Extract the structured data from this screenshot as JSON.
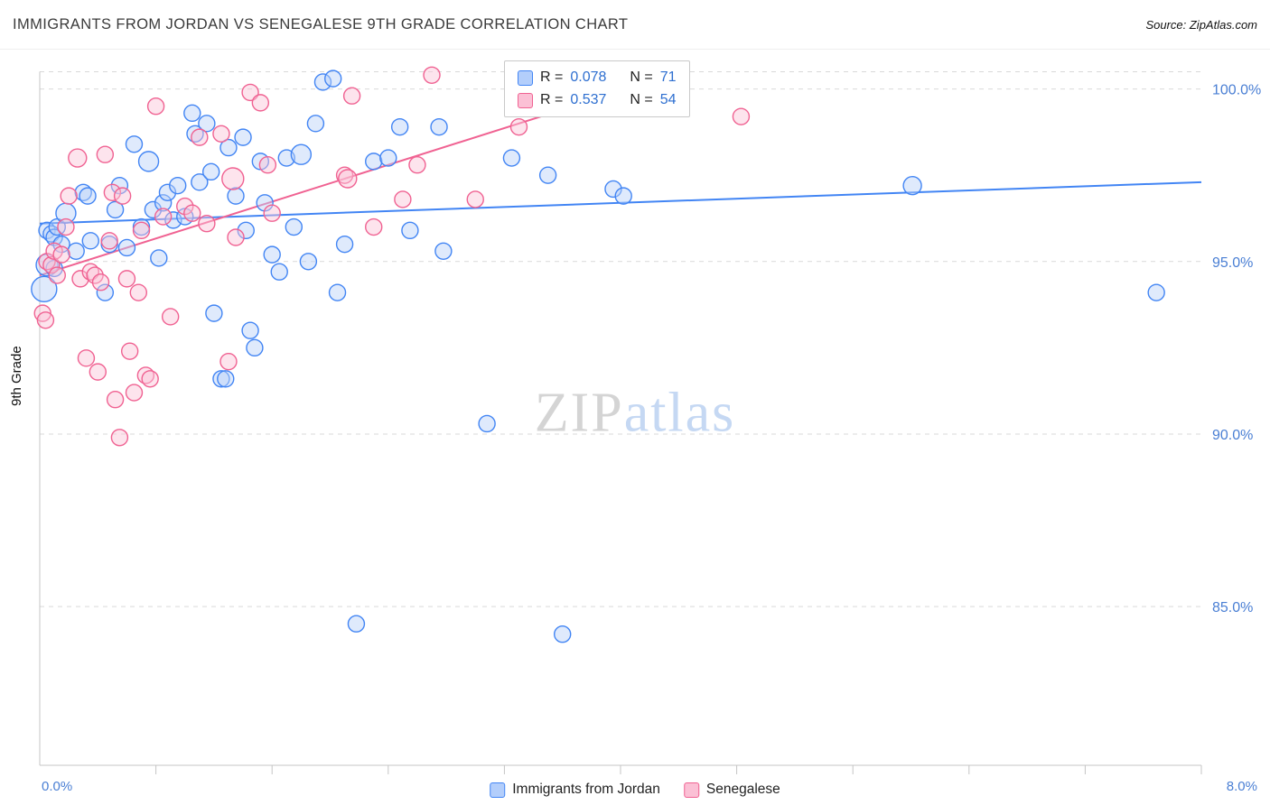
{
  "header": {
    "title": "IMMIGRANTS FROM JORDAN VS SENEGALESE 9TH GRADE CORRELATION CHART",
    "source": "Source: ZipAtlas.com"
  },
  "axes": {
    "y_title": "9th Grade",
    "x_min_label": "0.0%",
    "x_max_label": "8.0%"
  },
  "watermark": {
    "zip": "ZIP",
    "atlas": "atlas"
  },
  "legend_box": {
    "rows": [
      {
        "series": "Immigrants from Jordan",
        "r_prefix": "R =",
        "r_value": "0.078",
        "n_prefix": "N =",
        "n_value": "71"
      },
      {
        "series": "Senegalese",
        "r_prefix": "R =",
        "r_value": "0.537",
        "n_prefix": "N =",
        "n_value": "54"
      }
    ]
  },
  "bottom_legend": {
    "items": [
      {
        "label": "Immigrants from Jordan"
      },
      {
        "label": "Senegalese"
      }
    ]
  },
  "chart_data": {
    "type": "scatter",
    "title": "IMMIGRANTS FROM JORDAN VS SENEGALESE 9TH GRADE CORRELATION CHART",
    "xlabel": "",
    "ylabel": "9th Grade",
    "xlim": [
      0,
      8
    ],
    "ylim": [
      80.4,
      100.8
    ],
    "top_gridline": 100.5,
    "x_tick_step": 0.8,
    "grid": true,
    "legend_position": "top-center",
    "y_ticks": [
      {
        "value": 100,
        "label": "100.0%"
      },
      {
        "value": 95,
        "label": "95.0%"
      },
      {
        "value": 90,
        "label": "90.0%"
      },
      {
        "value": 85,
        "label": "85.0%"
      }
    ],
    "series": [
      {
        "name": "Immigrants from Jordan",
        "R": 0.078,
        "N": 71,
        "color": "#4285f4",
        "fill": "#b8d1f9",
        "points": [
          [
            0.03,
            94.2,
            14
          ],
          [
            0.05,
            94.9,
            12
          ],
          [
            0.05,
            95.9
          ],
          [
            0.08,
            95.8
          ],
          [
            0.1,
            95.7
          ],
          [
            0.1,
            94.8
          ],
          [
            0.12,
            96.0
          ],
          [
            0.15,
            95.5
          ],
          [
            0.18,
            96.4,
            11
          ],
          [
            0.25,
            95.3
          ],
          [
            0.3,
            97.0
          ],
          [
            0.33,
            96.9
          ],
          [
            0.35,
            95.6
          ],
          [
            0.45,
            94.1
          ],
          [
            0.48,
            95.5
          ],
          [
            0.52,
            96.5
          ],
          [
            0.55,
            97.2
          ],
          [
            0.6,
            95.4
          ],
          [
            0.65,
            98.4
          ],
          [
            0.7,
            96.0
          ],
          [
            0.75,
            97.9,
            11
          ],
          [
            0.78,
            96.5
          ],
          [
            0.82,
            95.1
          ],
          [
            0.85,
            96.7
          ],
          [
            0.88,
            97.0
          ],
          [
            0.92,
            96.2
          ],
          [
            0.95,
            97.2
          ],
          [
            1.0,
            96.3
          ],
          [
            1.05,
            99.3
          ],
          [
            1.07,
            98.7
          ],
          [
            1.1,
            97.3
          ],
          [
            1.15,
            99.0
          ],
          [
            1.18,
            97.6
          ],
          [
            1.2,
            93.5
          ],
          [
            1.25,
            91.6
          ],
          [
            1.28,
            91.6
          ],
          [
            1.3,
            98.3
          ],
          [
            1.35,
            96.9
          ],
          [
            1.4,
            98.6
          ],
          [
            1.42,
            95.9
          ],
          [
            1.45,
            93.0
          ],
          [
            1.48,
            92.5
          ],
          [
            1.52,
            97.9
          ],
          [
            1.55,
            96.7
          ],
          [
            1.6,
            95.2
          ],
          [
            1.65,
            94.7
          ],
          [
            1.7,
            98.0
          ],
          [
            1.75,
            96.0
          ],
          [
            1.8,
            98.1,
            11
          ],
          [
            1.85,
            95.0
          ],
          [
            1.9,
            99.0
          ],
          [
            1.95,
            100.2
          ],
          [
            2.02,
            100.3
          ],
          [
            2.05,
            94.1
          ],
          [
            2.1,
            95.5
          ],
          [
            2.18,
            84.5
          ],
          [
            2.3,
            97.9
          ],
          [
            2.4,
            98.0
          ],
          [
            2.48,
            98.9
          ],
          [
            2.55,
            95.9
          ],
          [
            2.75,
            98.9
          ],
          [
            2.78,
            95.3
          ],
          [
            3.08,
            90.3
          ],
          [
            3.25,
            98.0
          ],
          [
            3.5,
            97.5
          ],
          [
            3.6,
            84.2
          ],
          [
            3.95,
            97.1
          ],
          [
            4.02,
            96.9
          ],
          [
            4.3,
            100.5,
            11
          ],
          [
            6.01,
            97.2,
            10
          ],
          [
            7.69,
            94.1
          ]
        ]
      },
      {
        "name": "Senegalese",
        "R": 0.537,
        "N": 54,
        "color": "#f06292",
        "fill": "#fbc4d7",
        "points": [
          [
            0.02,
            93.5
          ],
          [
            0.04,
            93.3
          ],
          [
            0.05,
            95.0
          ],
          [
            0.08,
            94.9
          ],
          [
            0.1,
            95.3
          ],
          [
            0.12,
            94.6
          ],
          [
            0.15,
            95.2
          ],
          [
            0.18,
            96.0
          ],
          [
            0.2,
            96.9
          ],
          [
            0.26,
            98.0,
            10
          ],
          [
            0.28,
            94.5
          ],
          [
            0.32,
            92.2
          ],
          [
            0.35,
            94.7
          ],
          [
            0.38,
            94.6
          ],
          [
            0.4,
            91.8
          ],
          [
            0.42,
            94.4
          ],
          [
            0.45,
            98.1
          ],
          [
            0.48,
            95.6
          ],
          [
            0.5,
            97.0
          ],
          [
            0.52,
            91.0
          ],
          [
            0.55,
            89.9
          ],
          [
            0.57,
            96.9
          ],
          [
            0.6,
            94.5
          ],
          [
            0.62,
            92.4
          ],
          [
            0.65,
            91.2
          ],
          [
            0.68,
            94.1
          ],
          [
            0.7,
            95.9
          ],
          [
            0.73,
            91.7
          ],
          [
            0.76,
            91.6
          ],
          [
            0.8,
            99.5
          ],
          [
            0.85,
            96.3
          ],
          [
            0.9,
            93.4
          ],
          [
            1.0,
            96.6
          ],
          [
            1.05,
            96.4
          ],
          [
            1.1,
            98.6
          ],
          [
            1.15,
            96.1
          ],
          [
            1.25,
            98.7
          ],
          [
            1.3,
            92.1
          ],
          [
            1.33,
            97.4,
            12
          ],
          [
            1.35,
            95.7
          ],
          [
            1.45,
            99.9
          ],
          [
            1.52,
            99.6
          ],
          [
            1.57,
            97.8
          ],
          [
            1.6,
            96.4
          ],
          [
            2.1,
            97.5
          ],
          [
            2.12,
            97.4,
            10
          ],
          [
            2.15,
            99.8
          ],
          [
            2.3,
            96.0
          ],
          [
            2.5,
            96.8
          ],
          [
            2.6,
            97.8
          ],
          [
            2.7,
            100.4
          ],
          [
            3.0,
            96.8
          ],
          [
            3.3,
            98.9
          ],
          [
            4.83,
            99.2
          ]
        ]
      }
    ],
    "trend_lines": [
      {
        "series": "Immigrants from Jordan",
        "x1": 0,
        "y1": 96.1,
        "x2": 8.0,
        "y2": 97.3
      },
      {
        "series": "Senegalese",
        "x1": 0,
        "y1": 94.6,
        "x2": 4.35,
        "y2": 100.4
      }
    ]
  }
}
